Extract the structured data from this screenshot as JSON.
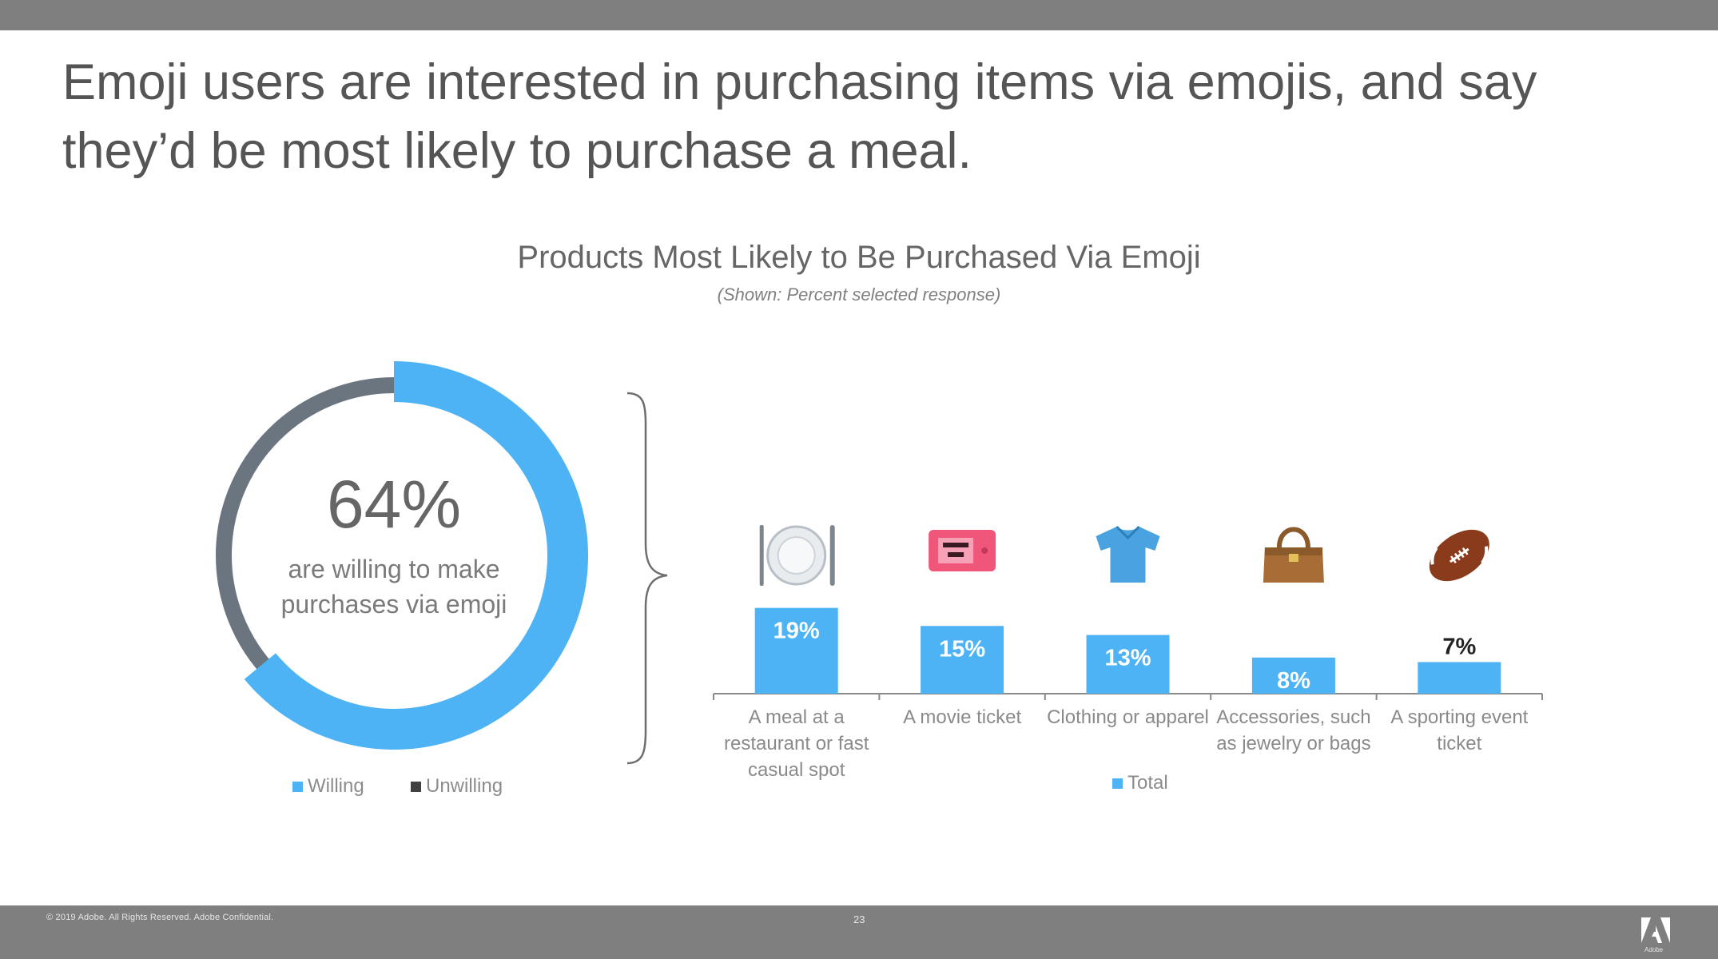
{
  "headline": "Emoji users are interested in purchasing items via emojis, and say they’d be most likely to purchase a meal.",
  "footer": {
    "copyright": "© 2019 Adobe. All Rights Reserved. Adobe Confidential.",
    "page_number": "23",
    "logo_text": "Adobe"
  },
  "colors": {
    "willing": "#4db3f4",
    "unwilling": "#6b7580",
    "total": "#4db3f4",
    "axis": "#8a8a8a"
  },
  "chart_data": [
    {
      "type": "pie",
      "center_value": "64%",
      "center_text": "are willing to make purchases via emoji",
      "categories": [
        "Willing",
        "Unwilling"
      ],
      "values": [
        64,
        36
      ],
      "legend": "bottom"
    },
    {
      "type": "bar",
      "title": "Products Most Likely to Be Purchased Via Emoji",
      "subtitle": "(Shown: Percent selected response)",
      "categories": [
        "A meal at a restaurant or fast casual spot",
        "A movie ticket",
        "Clothing or apparel",
        "Accessories, such as jewelry or bags",
        "A sporting event ticket"
      ],
      "series": [
        {
          "name": "Total",
          "values": [
            19,
            15,
            13,
            8,
            7
          ]
        }
      ],
      "labels": [
        "19%",
        "15%",
        "13%",
        "8%",
        "7%"
      ],
      "icons": [
        "fork-knife-plate-icon",
        "ticket-icon",
        "shirt-icon",
        "handbag-icon",
        "football-icon"
      ],
      "ylim": [
        0,
        20
      ],
      "legend": "bottom"
    }
  ]
}
